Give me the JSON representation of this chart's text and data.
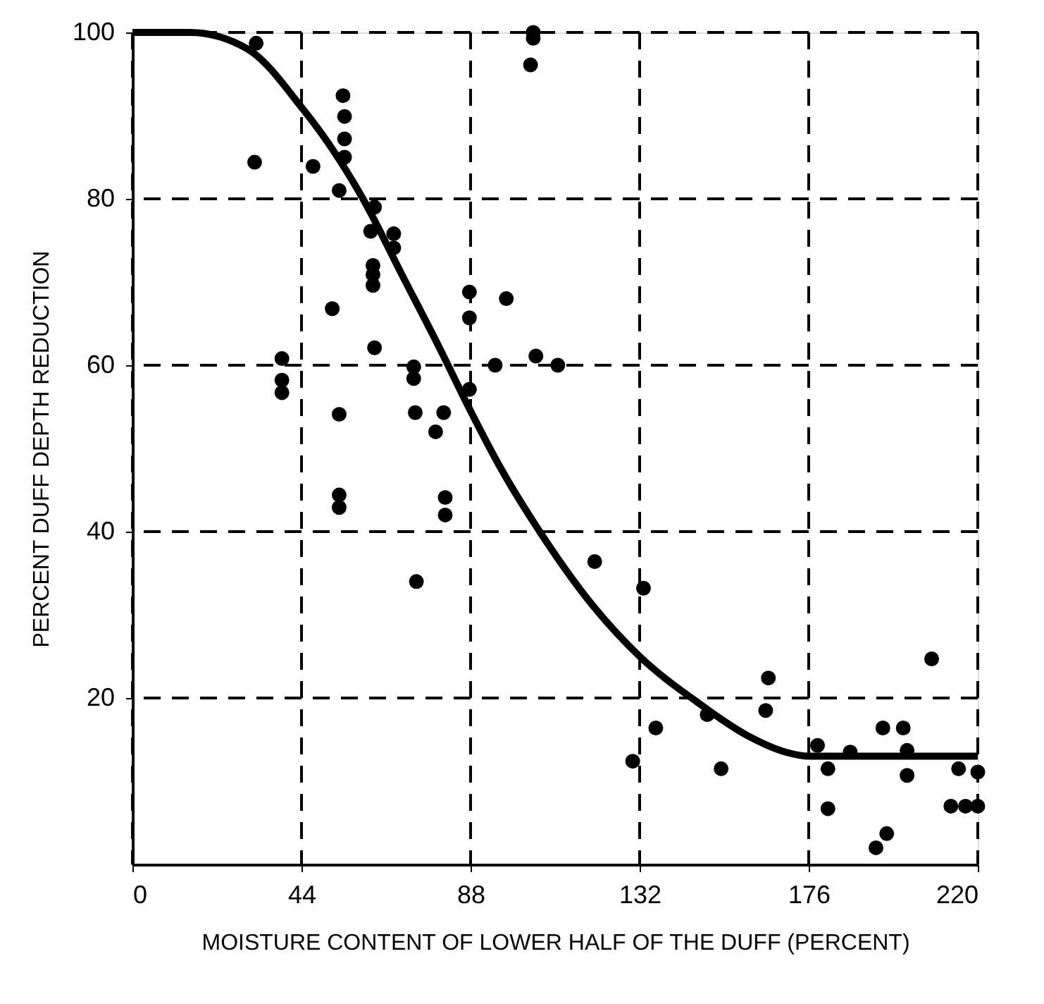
{
  "chart_data": {
    "type": "scatter",
    "xlabel": "MOISTURE CONTENT OF LOWER HALF OF THE DUFF (PERCENT)",
    "ylabel": "PERCENT DUFF DEPTH REDUCTION",
    "xlim": [
      0,
      220
    ],
    "xticks": [
      0,
      44,
      88,
      132,
      176,
      220
    ],
    "ylim": [
      0,
      100
    ],
    "yticks": [
      20,
      40,
      60,
      80,
      100
    ],
    "grid": true,
    "series": [
      {
        "color": "#000000",
        "marker": "circle",
        "x": [
          32.2,
          31.8,
          47,
          54.8,
          55.2,
          55.2,
          55.2,
          53.8,
          63,
          62,
          68,
          68,
          62.6,
          62.6,
          62.6,
          52,
          63,
          38.9,
          38.9,
          38.9,
          53.8,
          73.2,
          73.2,
          73.6,
          81,
          78.9,
          87.7,
          87.7,
          87.7,
          53.8,
          53.8,
          81.4,
          81.4,
          73.9,
          104.3,
          104.3,
          103.6,
          97.3,
          94.4,
          105,
          110.7,
          120.3,
          133,
          136.2,
          130.2,
          149.6,
          153.2,
          165.5,
          164.8,
          208,
          178.3,
          181,
          186.8,
          181,
          195.3,
          200.6,
          201.6,
          201.6,
          215,
          220,
          213,
          216.8,
          220,
          196.3,
          193.5
        ],
        "values": [
          98.7,
          84.4,
          83.9,
          92.4,
          89.9,
          87.2,
          85,
          81,
          79,
          76.1,
          75.8,
          74.1,
          72,
          70.9,
          69.6,
          66.8,
          62.1,
          60.8,
          58.2,
          56.7,
          54.1,
          59.8,
          58.4,
          54.3,
          54.3,
          52,
          68.8,
          65.7,
          57.1,
          44.4,
          42.9,
          44.1,
          42,
          34,
          100,
          99.3,
          96.1,
          68,
          60,
          61.1,
          60,
          36.4,
          33.2,
          16.4,
          12.4,
          18,
          11.5,
          22.4,
          18.5,
          24.7,
          14.3,
          11.5,
          13.5,
          6.7,
          16.4,
          16.4,
          13.7,
          10.7,
          11.5,
          11.1,
          7,
          7,
          7,
          3.7,
          2
        ]
      },
      {
        "type": "line",
        "color": "#000000",
        "marker": "none",
        "line_style": "solid",
        "x": [
          0,
          15,
          30,
          44,
          52,
          60,
          70,
          80,
          88,
          96,
          106,
          120,
          132,
          147,
          160,
          170,
          176,
          220
        ],
        "values": [
          100,
          100,
          98,
          91,
          86,
          80,
          71,
          62,
          54.5,
          47.5,
          40,
          31,
          25,
          19.5,
          15.5,
          13.5,
          13,
          13
        ]
      }
    ]
  }
}
